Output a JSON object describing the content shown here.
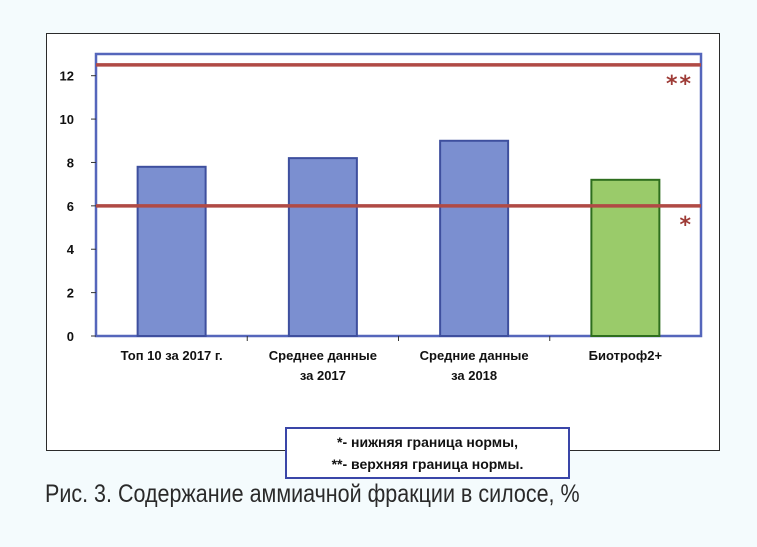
{
  "chart_data": {
    "type": "bar",
    "categories": [
      [
        "Топ 10 за 2017 г."
      ],
      [
        "Среднее данные",
        "за 2017"
      ],
      [
        "Средние данные",
        "за 2018"
      ],
      [
        "Биотроф2+"
      ]
    ],
    "values": [
      7.8,
      8.2,
      9.0,
      7.2
    ],
    "bar_colors": [
      "#7b8fd0",
      "#7b8fd0",
      "#7b8fd0",
      "#9acb6a"
    ],
    "ylim": [
      0,
      13
    ],
    "yticks": [
      "0",
      "2",
      "4",
      "6",
      "8",
      "10",
      "12"
    ],
    "reference_lines": [
      {
        "value": 6.0,
        "marker": "*",
        "color": "#b04a45"
      },
      {
        "value": 12.5,
        "marker": "**",
        "color": "#b04a45"
      }
    ],
    "grid": false,
    "legend_placement": "bottom-center"
  },
  "legend": {
    "line1": "*- нижняя граница нормы,",
    "line2": "**- верхняя граница нормы."
  },
  "caption": "Рис. 3. Содержание аммиачной фракции в силосе, %",
  "colors": {
    "plot_border": "#5566bb",
    "bar_blue": "#7b8fd0",
    "bar_green": "#9acb6a",
    "reference_line": "#b04a45"
  }
}
